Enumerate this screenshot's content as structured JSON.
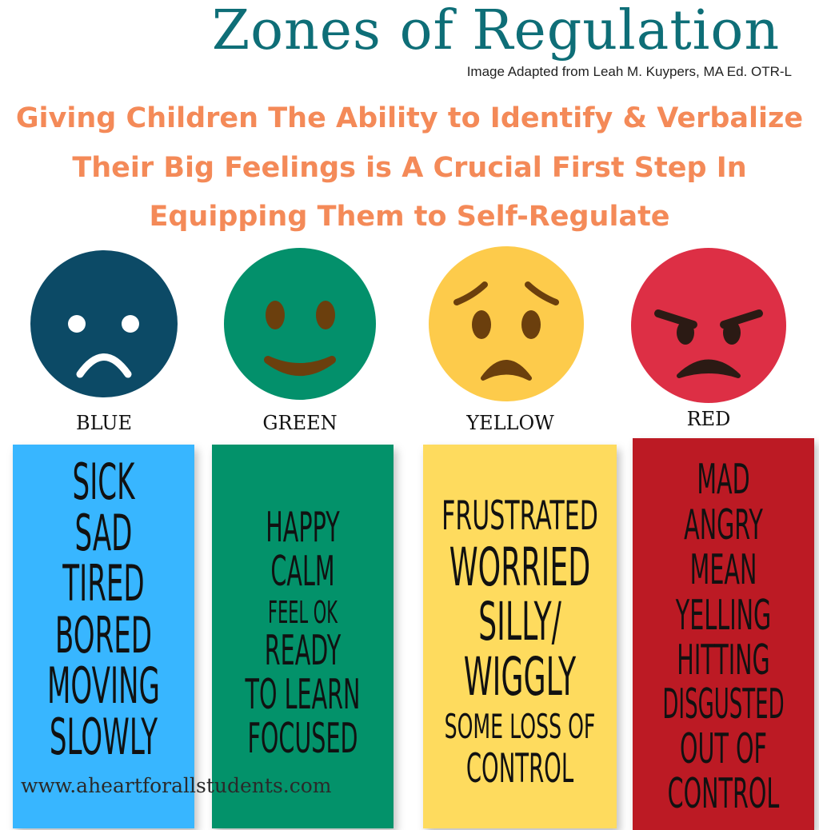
{
  "header": {
    "title": "Zones of Regulation",
    "credit": "Image Adapted from Leah M. Kuypers, MA Ed. OTR-L",
    "tagline": [
      "Giving Children The Ability to Identify & Verbalize",
      "Their Big Feelings is A Crucial First Step In",
      "Equipping Them to Self-Regulate"
    ]
  },
  "colors": {
    "title": "#0e6e77",
    "tagline": "#f48a58",
    "blue_face": "#0c4a66",
    "blue_bar": "#38b6ff",
    "green_face": "#03906b",
    "green_bar": "#03926a",
    "yellow_face": "#fdcb4b",
    "yellow_bar": "#fedb5e",
    "red_face": "#dd2f45",
    "red_bar": "#bc1a24"
  },
  "zones": [
    {
      "label": "BLUE",
      "face": "sad-face-icon",
      "words": [
        "SICK",
        "SAD",
        "TIRED",
        "BORED",
        "MOVING",
        "SLOWLY"
      ]
    },
    {
      "label": "GREEN",
      "face": "smiling-face-icon",
      "words": [
        "HAPPY",
        "CALM",
        "FEEL OK",
        "READY",
        "TO LEARN",
        "FOCUSED"
      ]
    },
    {
      "label": "YELLOW",
      "face": "worried-face-icon",
      "words": [
        "FRUSTRATED",
        "WORRIED",
        "SILLY/",
        "WIGGLY",
        "SOME LOSS OF",
        "CONTROL"
      ]
    },
    {
      "label": "RED",
      "face": "angry-face-icon",
      "words": [
        "MAD",
        "ANGRY",
        "MEAN",
        "YELLING",
        "HITTING",
        "DISGUSTED",
        "OUT OF",
        "CONTROL"
      ]
    }
  ],
  "footer": {
    "website": "www.aheartforallstudents.com"
  }
}
